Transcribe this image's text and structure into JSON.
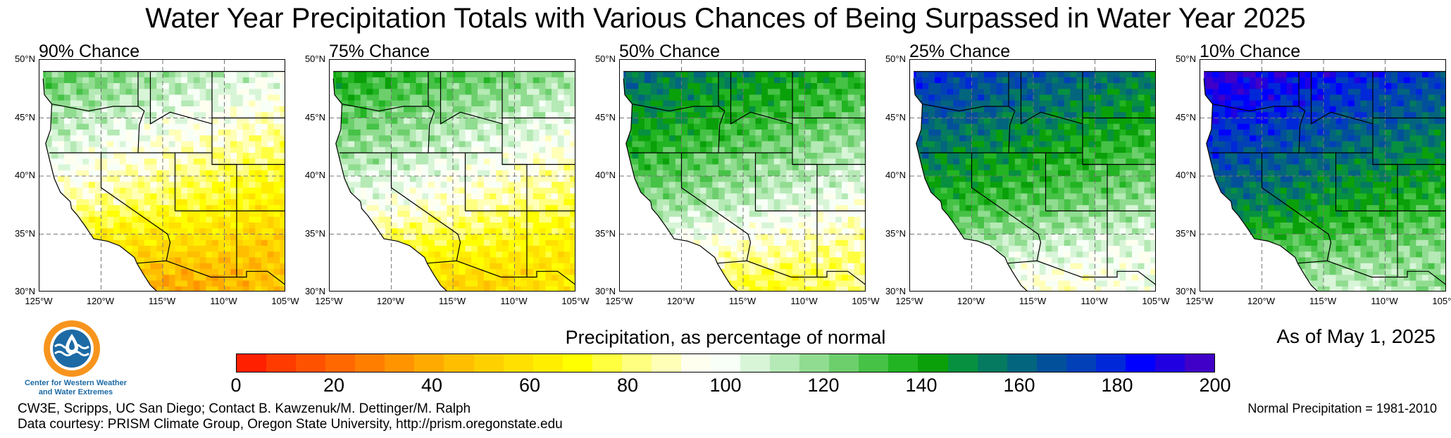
{
  "title": "Water Year Precipitation Totals with Various Chances of Being Surpassed in Water Year 2025",
  "panels": [
    {
      "label": "90% Chance",
      "wet_level": 0.05
    },
    {
      "label": "75% Chance",
      "wet_level": 0.2
    },
    {
      "label": "50% Chance",
      "wet_level": 0.42
    },
    {
      "label": "25% Chance",
      "wet_level": 0.62
    },
    {
      "label": "10% Chance",
      "wet_level": 0.82
    }
  ],
  "lat_labels": [
    "50°N",
    "45°N",
    "40°N",
    "35°N",
    "30°N"
  ],
  "lon_labels": [
    "125°W",
    "120°W",
    "115°W",
    "110°W",
    "105°W"
  ],
  "colorbar": {
    "title": "Precipitation, as percentage of normal",
    "ticks": [
      "0",
      "20",
      "40",
      "60",
      "80",
      "100",
      "120",
      "140",
      "160",
      "180",
      "200"
    ],
    "colors": [
      "#ff2000",
      "#ff3b00",
      "#ff5200",
      "#ff6800",
      "#ff7e00",
      "#ff9400",
      "#ffaa00",
      "#ffbe00",
      "#ffd000",
      "#ffe000",
      "#ffee00",
      "#ffff00",
      "#ffff40",
      "#ffff80",
      "#ffffb8",
      "#fffff0",
      "#f7fff7",
      "#d8f5d8",
      "#b5e9b5",
      "#90dc90",
      "#6ccf6c",
      "#46c246",
      "#22b422",
      "#0aa00a",
      "#069040",
      "#057a60",
      "#04657e",
      "#03509a",
      "#0240b8",
      "#0028d8",
      "#0000ff",
      "#2000e0",
      "#4000c8"
    ]
  },
  "as_of": "As of May 1, 2025",
  "logo": {
    "line1": "Center for Western Weather",
    "line2": "and Water Extremes"
  },
  "credits": {
    "line1": "CW3E, Scripps, UC San Diego; Contact B. Kawzenuk/M. Dettinger/M. Ralph",
    "line2": "Data courtesy: PRISM Climate Group, Oregon State University, http://prism.oregonstate.edu"
  },
  "normal_note": "Normal Precipitation = 1981-2010"
}
